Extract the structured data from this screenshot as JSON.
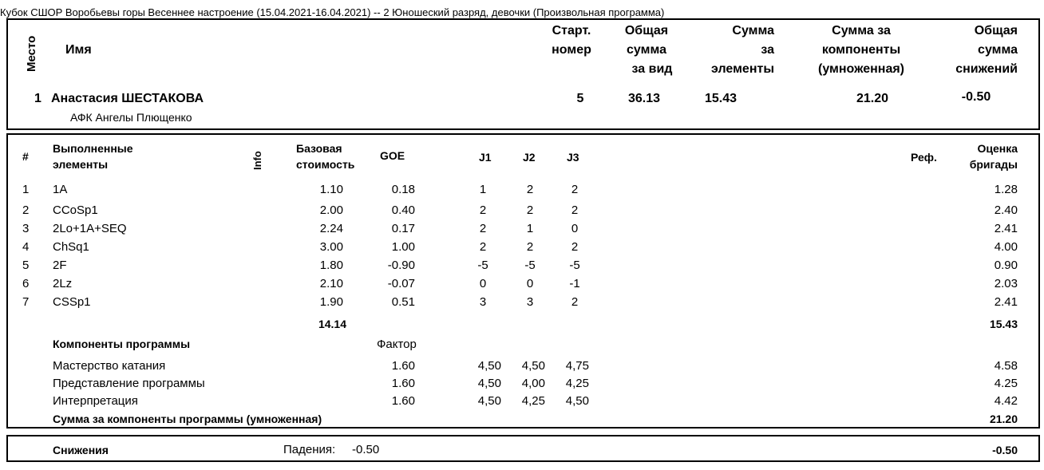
{
  "title": "Кубок СШОР Воробьевы горы Весеннее настроение (15.04.2021-16.04.2021)  --  2 Юношеский разряд, девочки  (Произвольная программа)",
  "header": {
    "place_label": "Место",
    "name_label": "Имя",
    "start_line1": "Старт.",
    "start_line2": "номер",
    "total_line1": "Общая",
    "total_line2": "сумма",
    "total_line3": "за вид",
    "elem_line1": "Сумма",
    "elem_line2": "за",
    "elem_line3": "элементы",
    "comp_line1": "Сумма за",
    "comp_line2": "компоненты",
    "comp_line3": "(умноженная)",
    "ded_line1": "Общая",
    "ded_line2": "сумма",
    "ded_line3": "снижений"
  },
  "skater": {
    "place": "1",
    "name": "Анастасия ШЕСТАКОВА",
    "club": "АФК Ангелы Плющенко",
    "start_no": "5",
    "total": "36.13",
    "elements": "15.43",
    "components": "21.20",
    "deductions": "-0.50"
  },
  "elements_table": {
    "col_num": "#",
    "col_elem_line1": "Выполненные",
    "col_elem_line2": "элементы",
    "col_info": "Info",
    "col_base_line1": "Базовая",
    "col_base_line2": "стоимость",
    "col_goe": "GOE",
    "col_j1": "J1",
    "col_j2": "J2",
    "col_j3": "J3",
    "col_ref": "Реф.",
    "col_score_line1": "Оценка",
    "col_score_line2": "бригады",
    "rows": [
      {
        "num": "1",
        "elem": "1A",
        "base": "1.10",
        "goe": "0.18",
        "j1": "1",
        "j2": "2",
        "j3": "2",
        "score": "1.28"
      },
      {
        "num": "2",
        "elem": "CCoSp1",
        "base": "2.00",
        "goe": "0.40",
        "j1": "2",
        "j2": "2",
        "j3": "2",
        "score": "2.40"
      },
      {
        "num": "3",
        "elem": "2Lo+1A+SEQ",
        "base": "2.24",
        "goe": "0.17",
        "j1": "2",
        "j2": "1",
        "j3": "0",
        "score": "2.41"
      },
      {
        "num": "4",
        "elem": "ChSq1",
        "base": "3.00",
        "goe": "1.00",
        "j1": "2",
        "j2": "2",
        "j3": "2",
        "score": "4.00"
      },
      {
        "num": "5",
        "elem": "2F",
        "base": "1.80",
        "goe": "-0.90",
        "j1": "-5",
        "j2": "-5",
        "j3": "-5",
        "score": "0.90"
      },
      {
        "num": "6",
        "elem": "2Lz",
        "base": "2.10",
        "goe": "-0.07",
        "j1": "0",
        "j2": "0",
        "j3": "-1",
        "score": "2.03"
      },
      {
        "num": "7",
        "elem": "CSSp1",
        "base": "1.90",
        "goe": "0.51",
        "j1": "3",
        "j2": "3",
        "j3": "2",
        "score": "2.41"
      }
    ],
    "base_total": "14.14",
    "score_total": "15.43"
  },
  "components_table": {
    "title": "Компоненты программы",
    "factor_label": "Фактор",
    "rows": [
      {
        "name": "Мастерство катания",
        "factor": "1.60",
        "j1": "4,50",
        "j2": "4,50",
        "j3": "4,75",
        "score": "4.58"
      },
      {
        "name": "Представление программы",
        "factor": "1.60",
        "j1": "4,50",
        "j2": "4,00",
        "j3": "4,25",
        "score": "4.25"
      },
      {
        "name": "Интерпретация",
        "factor": "1.60",
        "j1": "4,50",
        "j2": "4,25",
        "j3": "4,50",
        "score": "4.42"
      }
    ],
    "total_label": "Сумма за компоненты программы (умноженная)",
    "total": "21.20"
  },
  "deductions": {
    "label": "Снижения",
    "falls_label": "Падения:",
    "falls_value": "-0.50",
    "total": "-0.50"
  }
}
